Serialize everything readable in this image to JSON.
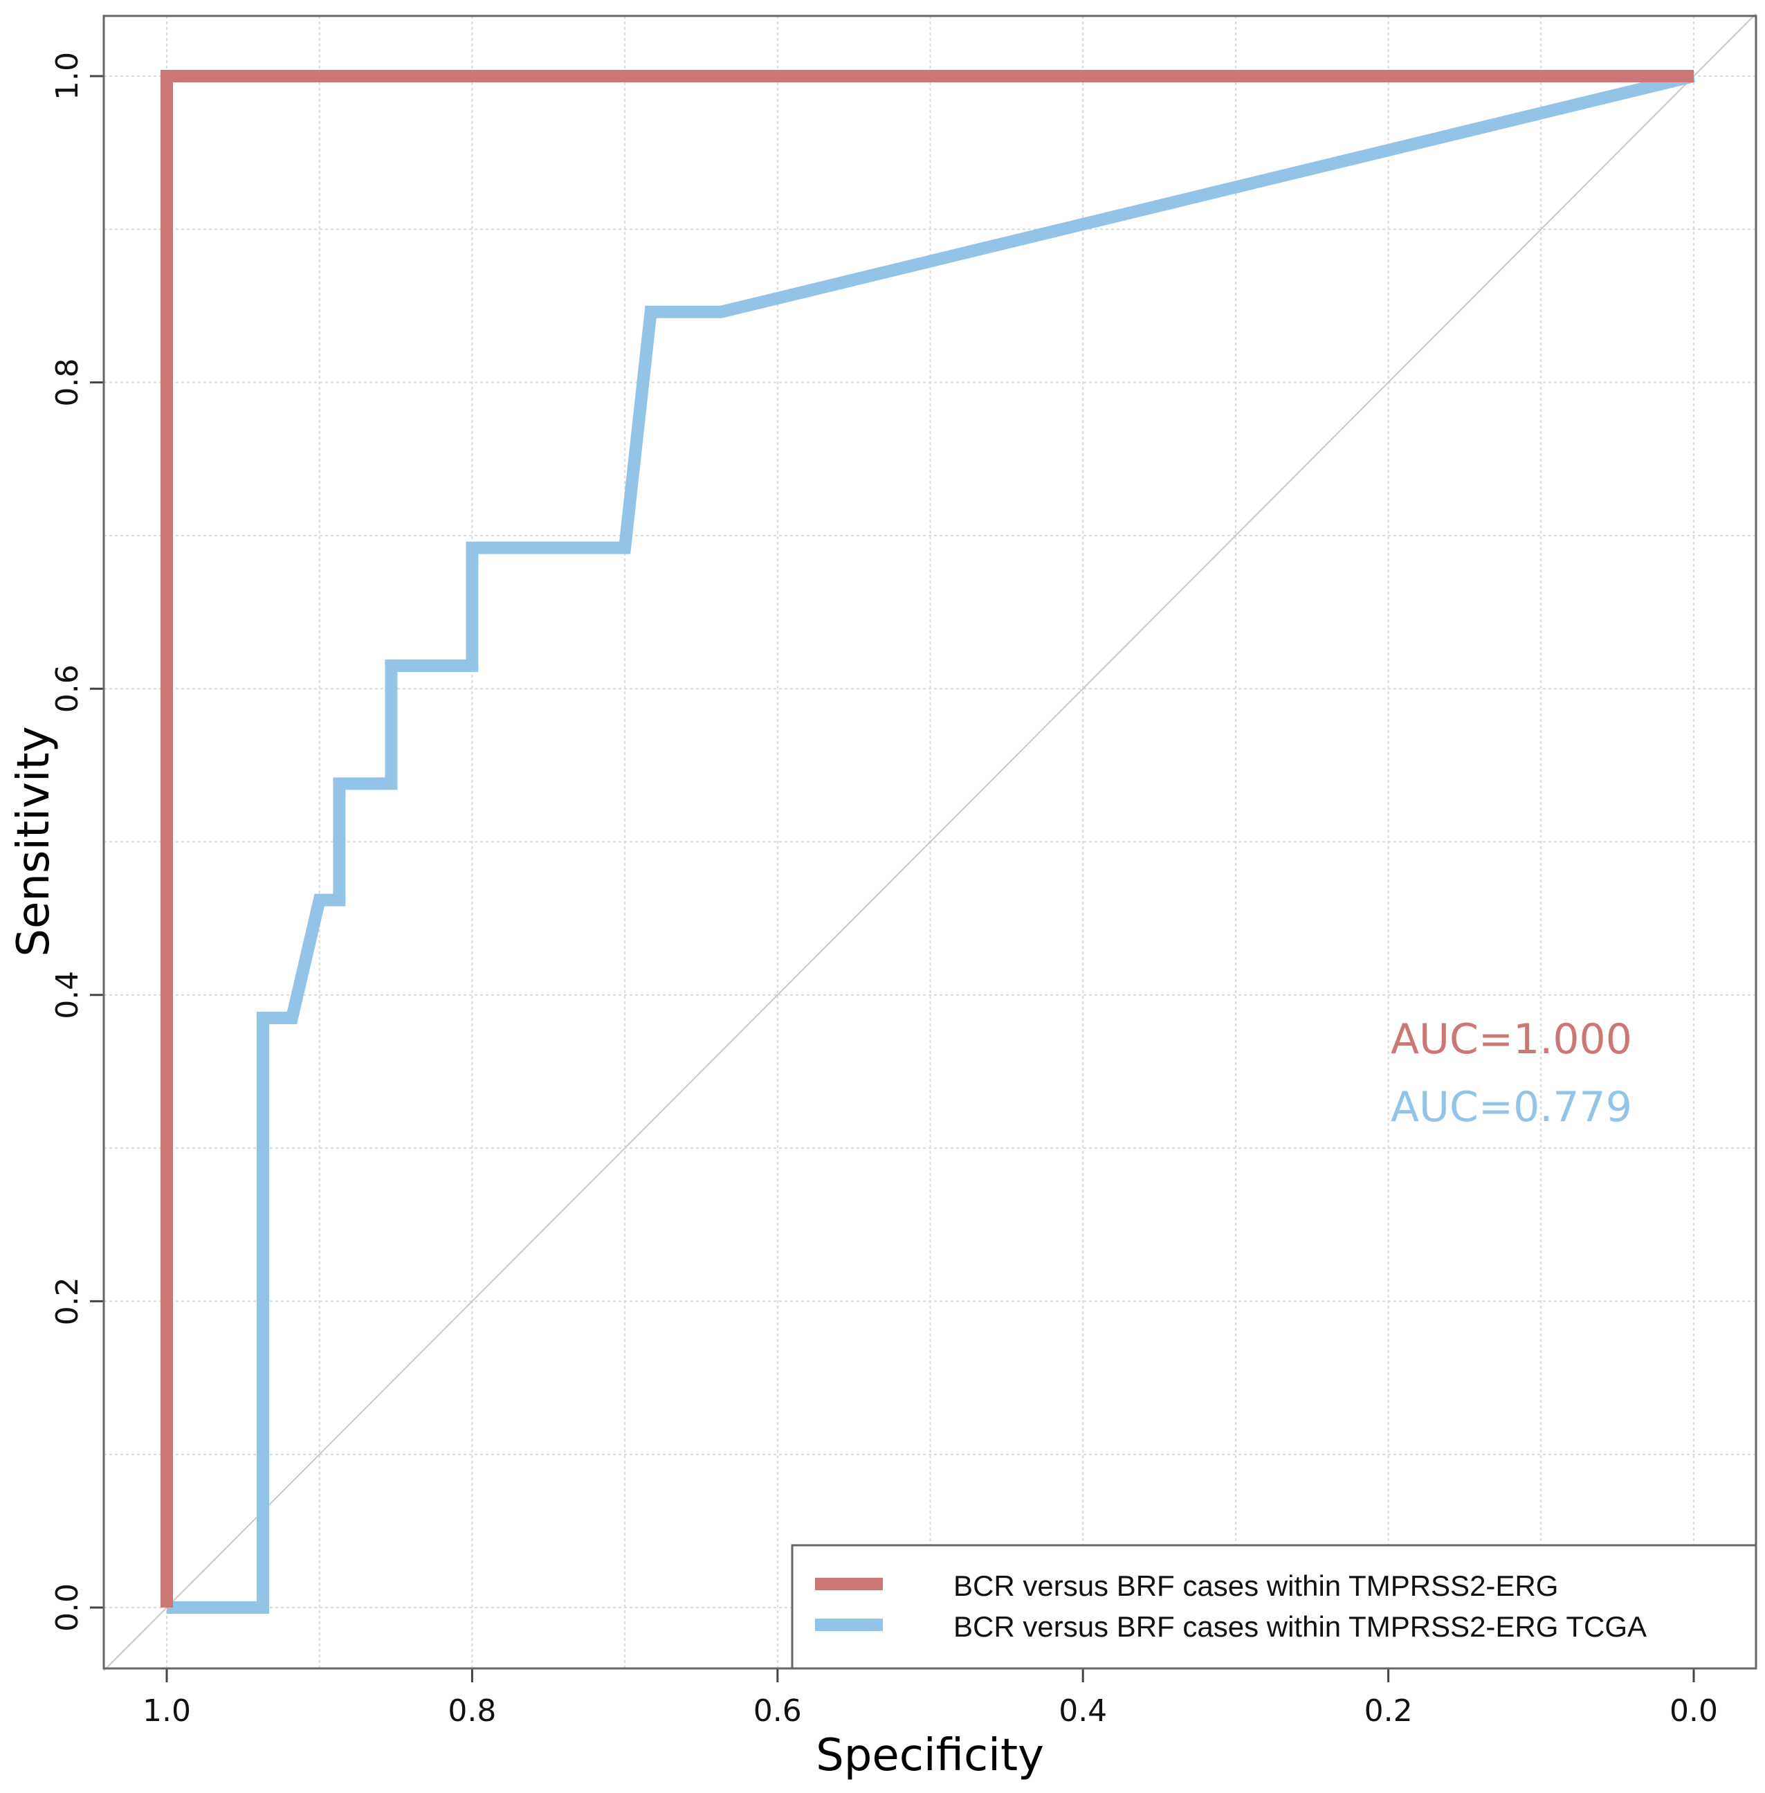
{
  "chart_data": {
    "type": "line",
    "title": "",
    "xlabel": "Specificity",
    "ylabel": "Sensitivity",
    "xlim": [
      1.0,
      0.0
    ],
    "ylim": [
      0.0,
      1.0
    ],
    "x_reversed": true,
    "grid": true,
    "xticks": [
      "1.0",
      "0.8",
      "0.6",
      "0.4",
      "0.2",
      "0.0"
    ],
    "yticks": [
      "0.0",
      "0.2",
      "0.4",
      "0.6",
      "0.8",
      "1.0"
    ],
    "legend_position": "bottom-right",
    "series": [
      {
        "name": "BCR versus BRF cases within TMPRSS2-ERG",
        "color": "#cc7676",
        "auc_label": "AUC=1.000",
        "specificity": [
          1.0,
          1.0,
          0.0
        ],
        "sensitivity": [
          0.0,
          1.0,
          1.0
        ]
      },
      {
        "name": "BCR versus BRF cases within TMPRSS2-ERG TCGA",
        "color": "#93c3e6",
        "auc_label": "AUC=0.779",
        "specificity": [
          1.0,
          0.937,
          0.937,
          0.918,
          0.9,
          0.887,
          0.887,
          0.853,
          0.853,
          0.8,
          0.8,
          0.7,
          0.683,
          0.637,
          0.0
        ],
        "sensitivity": [
          0.0,
          0.0,
          0.385,
          0.385,
          0.462,
          0.462,
          0.538,
          0.538,
          0.615,
          0.615,
          0.692,
          0.692,
          0.846,
          0.846,
          1.0
        ]
      }
    ],
    "reference_line": {
      "from": [
        1.0,
        0.0
      ],
      "to": [
        0.0,
        1.0
      ]
    }
  }
}
